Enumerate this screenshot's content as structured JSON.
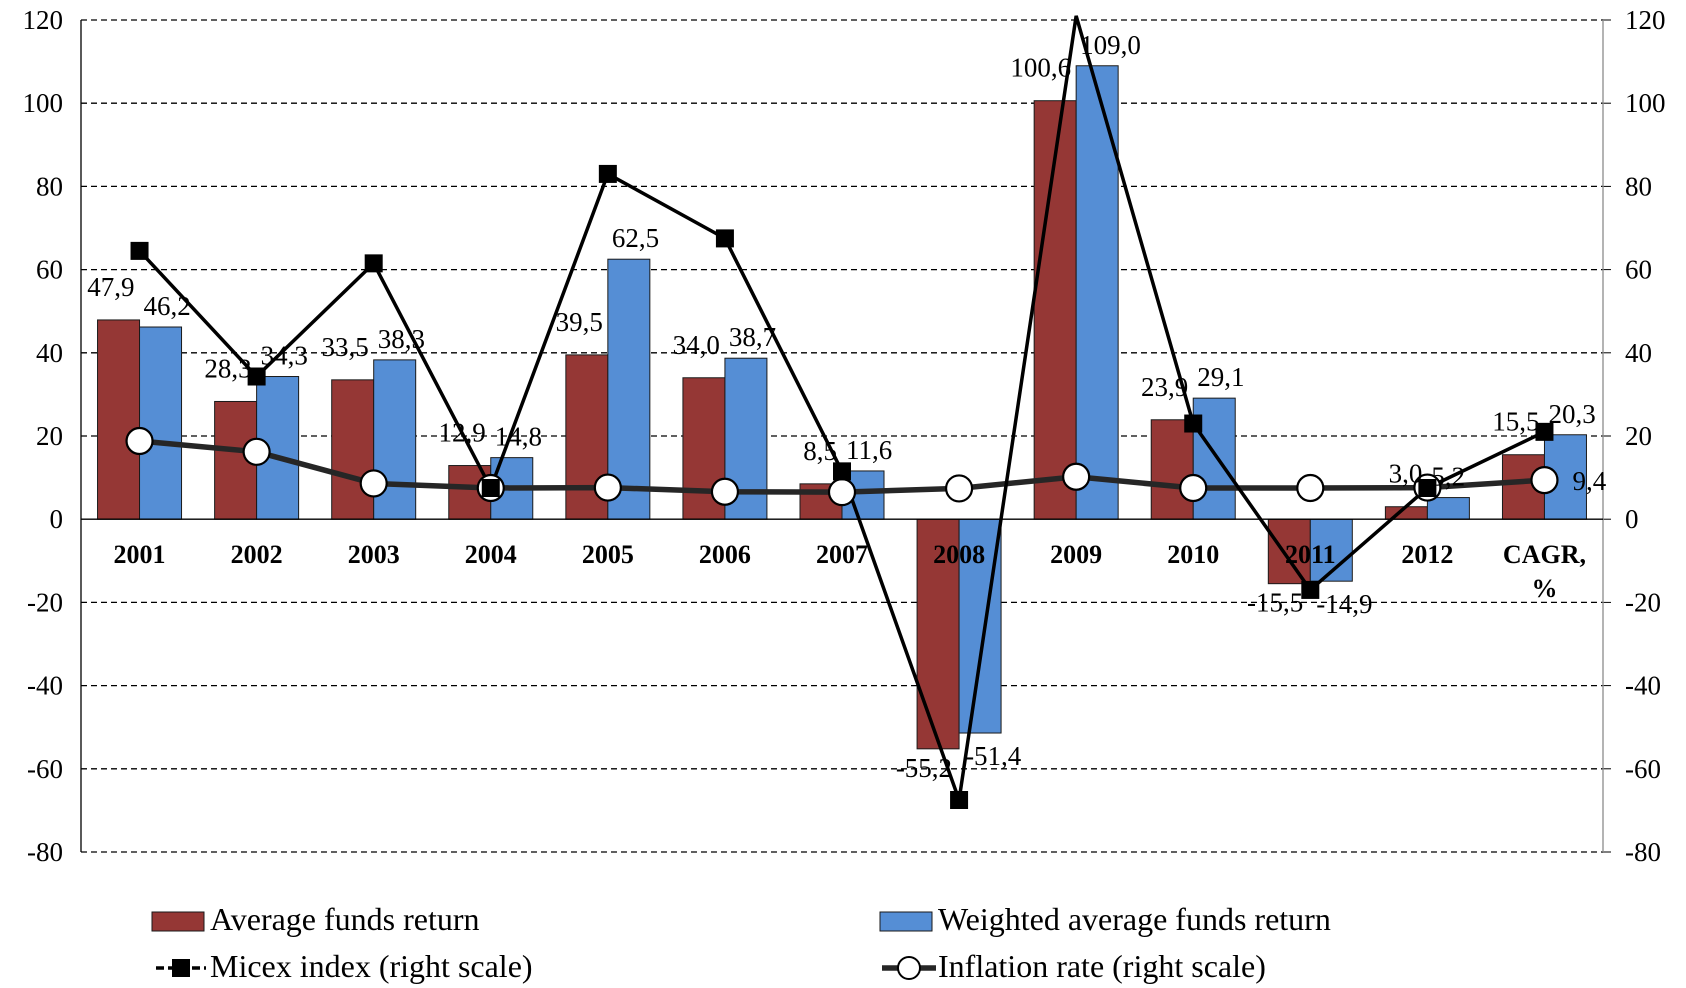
{
  "chart_data": {
    "type": "bar",
    "categories": [
      "2001",
      "2002",
      "2003",
      "2004",
      "2005",
      "2006",
      "2007",
      "2008",
      "2009",
      "2010",
      "2011",
      "2012",
      "CAGR,\n%"
    ],
    "ylim": [
      -80,
      120
    ],
    "y2lim": [
      -80,
      120
    ],
    "yticks": [
      "-80",
      "-60",
      "-40",
      "-20",
      "0",
      "20",
      "40",
      "60",
      "80",
      "100",
      "120"
    ],
    "y2ticks": [
      "-80",
      "-60",
      "-40",
      "-20",
      "0",
      "20",
      "40",
      "60",
      "80",
      "100",
      "120"
    ],
    "grid": "horizontal dashed",
    "legend_position": "bottom",
    "series": [
      {
        "name": "Average funds return",
        "kind": "bar",
        "axis": "left",
        "color": "#953735",
        "values": [
          47.9,
          28.3,
          33.5,
          12.9,
          39.5,
          34.0,
          8.5,
          -55.2,
          100.6,
          23.9,
          -15.5,
          3.0,
          15.5
        ],
        "labels": [
          "47,9",
          "28,3",
          "33,5",
          "12,9",
          "39,5",
          "34,0",
          "8,5",
          "-55,2",
          "100,6",
          "23,9",
          "-15,5",
          "3,0",
          "15,5"
        ]
      },
      {
        "name": "Weighted average funds return",
        "kind": "bar",
        "axis": "left",
        "color": "#558ED5",
        "values": [
          46.2,
          34.3,
          38.3,
          14.8,
          62.5,
          38.7,
          11.6,
          -51.4,
          109.0,
          29.1,
          -14.9,
          5.2,
          20.3
        ],
        "labels": [
          "46,2",
          "34,3",
          "38,3",
          "14,8",
          "62,5",
          "38,7",
          "11,6",
          "-51,4",
          "109,0",
          "29,1",
          "-14,9",
          "5,2",
          "20,3"
        ]
      },
      {
        "name": "Micex index (right scale)",
        "kind": "line",
        "axis": "right",
        "marker": "square",
        "color": "#000000",
        "values": [
          64.5,
          34.3,
          61.5,
          7.5,
          83.0,
          67.5,
          11.5,
          -67.5,
          121.0,
          23.0,
          -17.0,
          7.5,
          21.0
        ]
      },
      {
        "name": "Inflation rate (right scale)",
        "kind": "line",
        "axis": "right",
        "marker": "circle",
        "color": "#262626",
        "values": [
          18.8,
          16.2,
          8.6,
          7.5,
          7.6,
          6.6,
          6.5,
          7.4,
          10.2,
          7.5,
          7.5,
          7.6,
          9.4
        ],
        "labels": [
          "",
          "",
          "",
          "",
          "",
          "",
          "",
          "",
          "",
          "",
          "",
          "",
          "9,4"
        ]
      }
    ]
  }
}
